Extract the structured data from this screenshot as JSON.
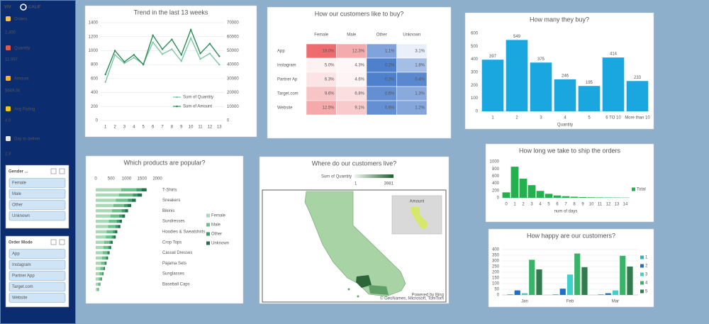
{
  "sidebar": {
    "logo_left": "VIV",
    "logo_right": "CALIF",
    "kpis": [
      {
        "label": "Orders",
        "value": "2,400"
      },
      {
        "label": "Quantity",
        "value": "11,997"
      },
      {
        "label": "Amount",
        "value": "$649.0k"
      },
      {
        "label": "Avg Rating",
        "value": "4.0"
      },
      {
        "label": "Day to deliver",
        "value": "2.3"
      }
    ],
    "slicers": [
      {
        "title": "Gender ...",
        "items": [
          "Female",
          "Male",
          "Other",
          "Unknown"
        ]
      },
      {
        "title": "Order Mode",
        "items": [
          "App",
          "Instagram",
          "Partner App",
          "Target.com",
          "Website"
        ]
      }
    ]
  },
  "chart_data": [
    {
      "type": "line",
      "title": "Trend in the last 13 weeks",
      "categories": [
        "1",
        "2",
        "3",
        "4",
        "5",
        "6",
        "7",
        "8",
        "9",
        "10",
        "11",
        "12",
        "13"
      ],
      "series": [
        {
          "name": "Sum of Quantity",
          "color": "#7cc7a4",
          "values": [
            550,
            940,
            820,
            900,
            810,
            1120,
            950,
            1020,
            850,
            1180,
            880,
            960,
            800
          ]
        },
        {
          "name": "Sum of Amount",
          "color": "#2e8b57",
          "axis": "y2",
          "values": [
            33000,
            50000,
            42000,
            47000,
            40000,
            61000,
            51000,
            58000,
            47000,
            65000,
            48000,
            55000,
            46000
          ]
        }
      ],
      "ylim": [
        0,
        1400
      ],
      "yticks": [
        0,
        200,
        400,
        600,
        800,
        1000,
        1200,
        1400
      ],
      "y2lim": [
        0,
        70000
      ],
      "y2ticks": [
        0,
        10000,
        20000,
        30000,
        40000,
        50000,
        60000,
        70000
      ],
      "grid": true,
      "legend": "right"
    },
    {
      "type": "heatmap",
      "title": "How our customers like to buy?",
      "columns": [
        "Female",
        "Male",
        "Other",
        "Unknown"
      ],
      "rows": [
        "App",
        "Instagram",
        "Partner Ap",
        "Target.com",
        "Website"
      ],
      "cells": [
        [
          "19.0%",
          "12.3%",
          "1.1%",
          "3.1%"
        ],
        [
          "5.0%",
          "4.3%",
          "0.2%",
          "1.8%"
        ],
        [
          "6.3%",
          "4.6%",
          "0.2%",
          "0.4%"
        ],
        [
          "9.6%",
          "6.8%",
          "0.6%",
          "1.3%"
        ],
        [
          "12.5%",
          "9.1%",
          "0.6%",
          "1.2%"
        ]
      ]
    },
    {
      "type": "bar",
      "title": "How many they buy?",
      "categories": [
        "1",
        "2",
        "3",
        "4",
        "5",
        "6 TO 10",
        "More than 10"
      ],
      "values": [
        397,
        549,
        375,
        246,
        195,
        414,
        233
      ],
      "color": "#1aa7e0",
      "show_values": true,
      "ylim": [
        0,
        600
      ],
      "yticks": [
        0,
        100,
        200,
        300,
        400,
        500,
        600
      ],
      "xlabel": "Quantity",
      "grid": false
    },
    {
      "type": "bar",
      "orientation": "horizontal",
      "stacked": true,
      "title": "Which products are popular?",
      "categories": [
        "T-Shirts",
        null,
        "Sneakers",
        null,
        "Bikinis",
        null,
        "Sundresses",
        null,
        "Hoodies & Sweatshirts",
        null,
        "Crop Tops",
        null,
        "Casual Dresses",
        null,
        "Pajama Sets",
        null,
        "Sunglasses",
        null,
        "Baseball Caps",
        null
      ],
      "series": [
        {
          "name": "Female",
          "color": "#a9d8b4",
          "values": [
            825,
            750,
            650,
            575,
            525,
            475,
            425,
            400,
            350,
            325,
            275,
            250,
            225,
            200,
            175,
            150,
            125,
            100,
            75,
            50
          ]
        },
        {
          "name": "Male",
          "color": "#6cc08a",
          "values": [
            495,
            450,
            390,
            345,
            315,
            285,
            255,
            240,
            210,
            195,
            165,
            150,
            135,
            120,
            105,
            90,
            75,
            60,
            45,
            30
          ]
        },
        {
          "name": "Other",
          "color": "#3c9c68",
          "values": [
            165,
            150,
            130,
            115,
            105,
            95,
            85,
            80,
            70,
            65,
            55,
            50,
            45,
            40,
            35,
            30,
            25,
            20,
            15,
            10
          ]
        },
        {
          "name": "Unknown",
          "color": "#24704a",
          "values": [
            165,
            150,
            130,
            115,
            105,
            95,
            85,
            80,
            70,
            65,
            55,
            50,
            45,
            40,
            35,
            30,
            25,
            20,
            15,
            10
          ]
        }
      ],
      "xlim": [
        0,
        2000
      ],
      "xticks": [
        0,
        500,
        1000,
        1500,
        2000
      ],
      "legend": "right"
    },
    {
      "type": "map",
      "title": "Where do our customers live?",
      "legend_title": "Sum of Quantity",
      "scale": [
        1,
        3981
      ],
      "inset_title": "Amount",
      "credit_1": "Powered by Bing",
      "credit_2": "© GeoNames, Microsoft, TomTom"
    },
    {
      "type": "bar",
      "title": "How long we take to ship the orders",
      "categories": [
        "0",
        "1",
        "2",
        "3",
        "4",
        "5",
        "6",
        "7",
        "8",
        "9",
        "10",
        "11",
        "12",
        "13",
        "14"
      ],
      "series": [
        {
          "name": "Total",
          "color": "#22b14c",
          "values": [
            150,
            860,
            530,
            350,
            190,
            110,
            65,
            45,
            30,
            20,
            15,
            12,
            10,
            8,
            5
          ]
        }
      ],
      "ylim": [
        0,
        1000
      ],
      "yticks": [
        0,
        200,
        400,
        600,
        800,
        1000
      ],
      "xlabel": "num of days",
      "grid": false,
      "legend": "right"
    },
    {
      "type": "bar",
      "title": "How happy are our customers?",
      "categories": [
        "Jan",
        "Feb",
        "Mar"
      ],
      "series": [
        {
          "name": "1",
          "color": "#2cb5c8",
          "values": [
            5,
            5,
            5
          ]
        },
        {
          "name": "2",
          "color": "#1f6fc4",
          "values": [
            40,
            55,
            15
          ]
        },
        {
          "name": "3",
          "color": "#3fd0c9",
          "values": [
            15,
            180,
            40
          ]
        },
        {
          "name": "4",
          "color": "#38b46a",
          "values": [
            310,
            365,
            345
          ]
        },
        {
          "name": "5",
          "color": "#2f7a4e",
          "values": [
            225,
            245,
            250
          ]
        }
      ],
      "ylim": [
        0,
        400
      ],
      "yticks": [
        0,
        50,
        100,
        150,
        200,
        250,
        300,
        350,
        400
      ],
      "grid": true,
      "legend": "right"
    }
  ]
}
